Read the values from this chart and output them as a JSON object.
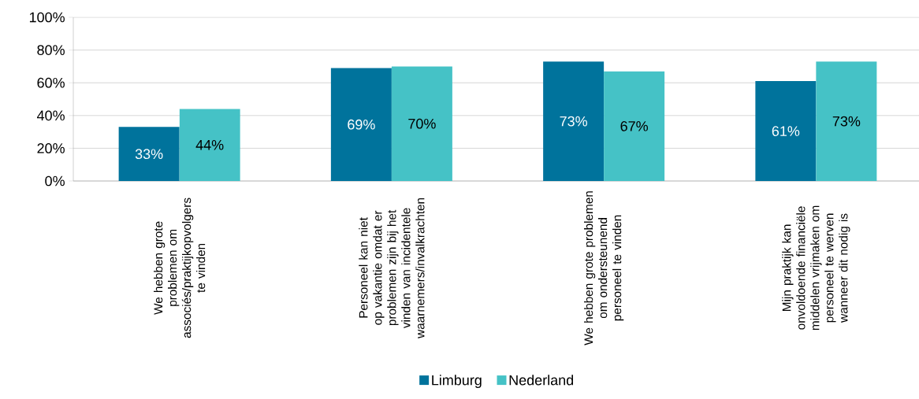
{
  "chart_data": {
    "type": "bar",
    "categories": [
      "We hebben grote problemen om associés/praktijkopvolgers te vinden",
      "Personeel kan niet op vakantie omdat er problemen zijn bij het vinden van incidentele waarnemers/invalkrachten",
      "We hebben grote problemen om ondersteunend personeel te vinden",
      "Mijn praktijk kan onvoldoende financiële middelen vrijmaken om personeel te werven wanneer dit nodig is"
    ],
    "series": [
      {
        "name": "Limburg",
        "color": "#00739c",
        "values": [
          33,
          69,
          73,
          61
        ],
        "value_labels": [
          "33%",
          "69%",
          "73%",
          "61%"
        ]
      },
      {
        "name": "Nederland",
        "color": "#45c2c6",
        "values": [
          44,
          70,
          67,
          73
        ],
        "value_labels": [
          "44%",
          "70%",
          "67%",
          "73%"
        ]
      }
    ],
    "ylim": [
      0,
      100
    ],
    "yticks": [
      {
        "value": 0,
        "label": "0%"
      },
      {
        "value": 20,
        "label": "20%"
      },
      {
        "value": 40,
        "label": "40%"
      },
      {
        "value": 60,
        "label": "60%"
      },
      {
        "value": 80,
        "label": "80%"
      },
      {
        "value": 100,
        "label": "100%"
      }
    ],
    "grid": "y",
    "legend": "bottom"
  }
}
